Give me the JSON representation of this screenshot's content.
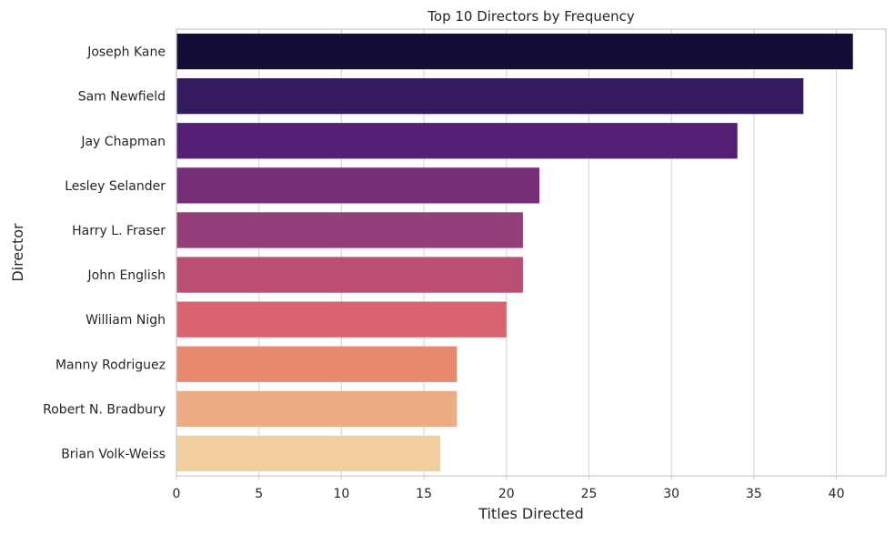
{
  "chart_data": {
    "type": "bar",
    "orientation": "horizontal",
    "title": "Top 10 Directors by Frequency",
    "xlabel": "Titles Directed",
    "ylabel": "Director",
    "categories": [
      "Joseph Kane",
      "Sam Newfield",
      "Jay Chapman",
      "Lesley Selander",
      "Harry L. Fraser",
      "John English",
      "William Nigh",
      "Manny Rodriguez",
      "Robert N. Bradbury",
      "Brian Volk-Weiss"
    ],
    "values": [
      41,
      38,
      34,
      22,
      21,
      21,
      20,
      17,
      17,
      16
    ],
    "colors": [
      "#140e36",
      "#331a5c",
      "#541f74",
      "#742f77",
      "#943f79",
      "#ba4e73",
      "#d7646f",
      "#e7896f",
      "#edad84",
      "#f2cf9e"
    ],
    "xlim": [
      0,
      43
    ],
    "xticks": [
      0,
      5,
      10,
      15,
      20,
      25,
      30,
      35,
      40
    ],
    "grid": true,
    "legend": "none"
  }
}
